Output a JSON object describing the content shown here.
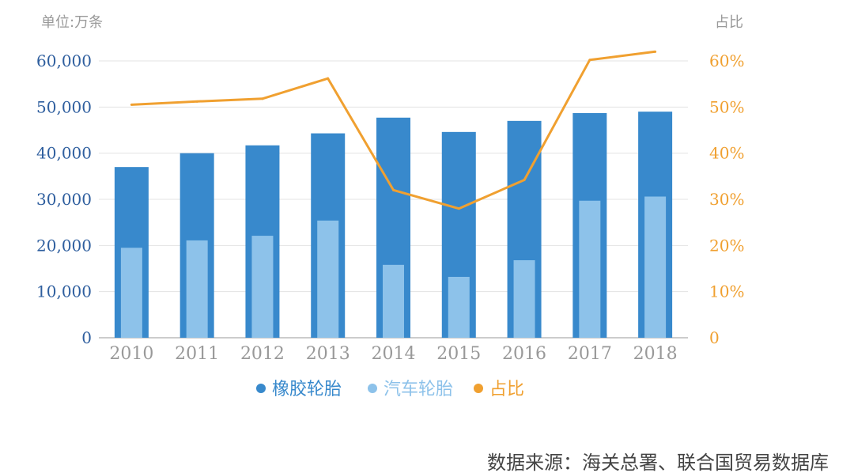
{
  "chart_data": {
    "type": "bar",
    "categories": [
      "2010",
      "2011",
      "2012",
      "2013",
      "2014",
      "2015",
      "2016",
      "2017",
      "2018"
    ],
    "series": [
      {
        "name": "橡胶轮胎",
        "type": "bar",
        "axis": "left",
        "color": "#3889CC",
        "values": [
          37000,
          40000,
          41700,
          44300,
          47700,
          44600,
          47000,
          48700,
          49000
        ]
      },
      {
        "name": "汽车轮胎",
        "type": "bar",
        "axis": "left",
        "color": "#8DC2EA",
        "values": [
          19500,
          21100,
          22100,
          25400,
          15800,
          13200,
          16800,
          29700,
          30600
        ]
      },
      {
        "name": "占比",
        "type": "line",
        "axis": "right",
        "color": "#F0A030",
        "values": [
          50.5,
          51.2,
          51.8,
          56.2,
          32.0,
          28.0,
          34.2,
          60.2,
          62.0
        ]
      }
    ],
    "left_axis": {
      "unit_label": "单位:万条",
      "ylim": [
        0,
        60000
      ],
      "ticks": [
        0,
        10000,
        20000,
        30000,
        40000,
        50000,
        60000
      ],
      "tick_labels": [
        "0",
        "10,000",
        "20,000",
        "30,000",
        "40,000",
        "50,000",
        "60,000"
      ],
      "color": "#2E5E9E"
    },
    "right_axis": {
      "unit_label": "占比",
      "ylim": [
        0,
        60
      ],
      "ticks": [
        0,
        10,
        20,
        30,
        40,
        50,
        60
      ],
      "tick_labels": [
        "0",
        "10%",
        "20%",
        "30%",
        "40%",
        "50%",
        "60%"
      ],
      "color": "#F0A030"
    },
    "x_tick_color": "#999999",
    "grid": true,
    "legend_position": "bottom"
  },
  "source_note": "数据来源：海关总署、联合国贸易数据库"
}
